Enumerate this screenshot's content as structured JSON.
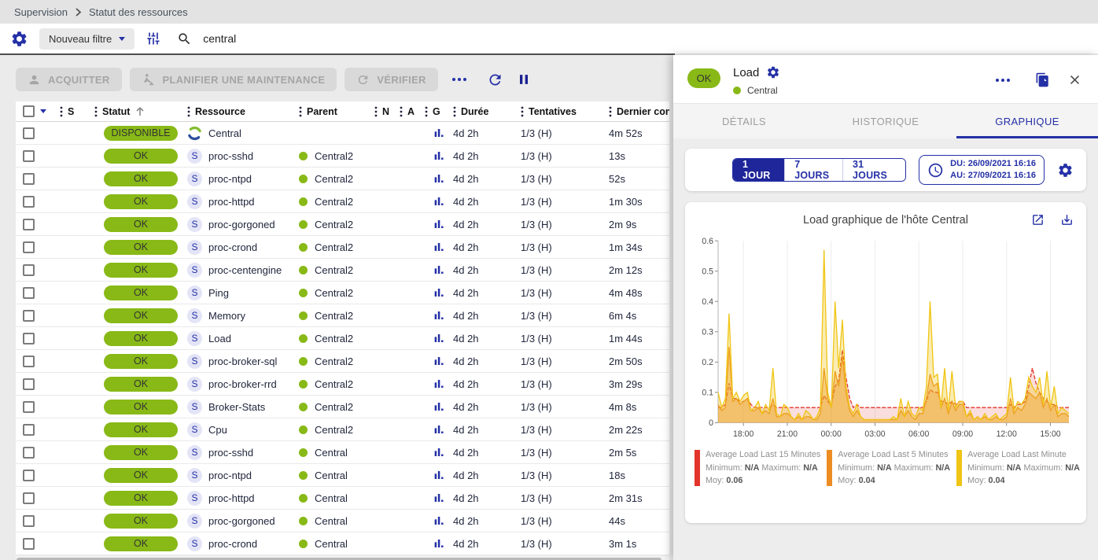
{
  "palette": {
    "primary": "#2430a6",
    "primary_dark": "#1f2699",
    "ok_green": "#88b917"
  },
  "breadcrumb": {
    "items": [
      "Supervision",
      "Statut des ressources"
    ]
  },
  "filter_bar": {
    "filter_label": "Nouveau filtre",
    "search_value": "central"
  },
  "actions": {
    "acknowledge": "ACQUITTER",
    "downtime": "PLANIFIER UNE MAINTENANCE",
    "check": "VÉRIFIER"
  },
  "table": {
    "status_ok_color": "#88b917",
    "columns": [
      {
        "label": ""
      },
      {
        "label": "S"
      },
      {
        "label": "Statut"
      },
      {
        "label": "Ressource"
      },
      {
        "label": "Parent"
      },
      {
        "label": "N"
      },
      {
        "label": "A"
      },
      {
        "label": "G"
      },
      {
        "label": "Durée"
      },
      {
        "label": "Tentatives"
      },
      {
        "label": "Dernier contrôle"
      }
    ],
    "rows": [
      {
        "status": "DISPONIBLE",
        "type": "host",
        "resource": "Central",
        "parent": "",
        "duration": "4d 2h",
        "tries": "1/3 (H)",
        "last_check": "4m 52s"
      },
      {
        "status": "OK",
        "type": "service",
        "resource": "proc-sshd",
        "parent": "Central2",
        "duration": "4d 2h",
        "tries": "1/3 (H)",
        "last_check": "13s"
      },
      {
        "status": "OK",
        "type": "service",
        "resource": "proc-ntpd",
        "parent": "Central2",
        "duration": "4d 2h",
        "tries": "1/3 (H)",
        "last_check": "52s"
      },
      {
        "status": "OK",
        "type": "service",
        "resource": "proc-httpd",
        "parent": "Central2",
        "duration": "4d 2h",
        "tries": "1/3 (H)",
        "last_check": "1m 30s"
      },
      {
        "status": "OK",
        "type": "service",
        "resource": "proc-gorgoned",
        "parent": "Central2",
        "duration": "4d 2h",
        "tries": "1/3 (H)",
        "last_check": "2m 9s"
      },
      {
        "status": "OK",
        "type": "service",
        "resource": "proc-crond",
        "parent": "Central2",
        "duration": "4d 2h",
        "tries": "1/3 (H)",
        "last_check": "1m 34s"
      },
      {
        "status": "OK",
        "type": "service",
        "resource": "proc-centengine",
        "parent": "Central2",
        "duration": "4d 2h",
        "tries": "1/3 (H)",
        "last_check": "2m 12s"
      },
      {
        "status": "OK",
        "type": "service",
        "resource": "Ping",
        "parent": "Central2",
        "duration": "4d 2h",
        "tries": "1/3 (H)",
        "last_check": "4m 48s"
      },
      {
        "status": "OK",
        "type": "service",
        "resource": "Memory",
        "parent": "Central2",
        "duration": "4d 2h",
        "tries": "1/3 (H)",
        "last_check": "6m 4s"
      },
      {
        "status": "OK",
        "type": "service",
        "resource": "Load",
        "parent": "Central2",
        "duration": "4d 2h",
        "tries": "1/3 (H)",
        "last_check": "1m 44s"
      },
      {
        "status": "OK",
        "type": "service",
        "resource": "proc-broker-sql",
        "parent": "Central2",
        "duration": "4d 2h",
        "tries": "1/3 (H)",
        "last_check": "2m 50s"
      },
      {
        "status": "OK",
        "type": "service",
        "resource": "proc-broker-rrd",
        "parent": "Central2",
        "duration": "4d 2h",
        "tries": "1/3 (H)",
        "last_check": "3m 29s"
      },
      {
        "status": "OK",
        "type": "service",
        "resource": "Broker-Stats",
        "parent": "Central2",
        "duration": "4d 2h",
        "tries": "1/3 (H)",
        "last_check": "4m 8s"
      },
      {
        "status": "OK",
        "type": "service",
        "resource": "Cpu",
        "parent": "Central2",
        "duration": "4d 2h",
        "tries": "1/3 (H)",
        "last_check": "2m 22s"
      },
      {
        "status": "OK",
        "type": "service",
        "resource": "proc-sshd",
        "parent": "Central",
        "duration": "4d 2h",
        "tries": "1/3 (H)",
        "last_check": "2m 5s"
      },
      {
        "status": "OK",
        "type": "service",
        "resource": "proc-ntpd",
        "parent": "Central",
        "duration": "4d 2h",
        "tries": "1/3 (H)",
        "last_check": "18s"
      },
      {
        "status": "OK",
        "type": "service",
        "resource": "proc-httpd",
        "parent": "Central",
        "duration": "4d 2h",
        "tries": "1/3 (H)",
        "last_check": "2m 31s"
      },
      {
        "status": "OK",
        "type": "service",
        "resource": "proc-gorgoned",
        "parent": "Central",
        "duration": "4d 2h",
        "tries": "1/3 (H)",
        "last_check": "44s"
      },
      {
        "status": "OK",
        "type": "service",
        "resource": "proc-crond",
        "parent": "Central",
        "duration": "4d 2h",
        "tries": "1/3 (H)",
        "last_check": "3m 1s"
      }
    ]
  },
  "drawer": {
    "status": "OK",
    "title": "Load",
    "parent": "Central",
    "tabs": [
      "DÉTAILS",
      "HISTORIQUE",
      "GRAPHIQUE"
    ],
    "active_tab": "GRAPHIQUE",
    "ranges": [
      "1 JOUR",
      "7 JOURS",
      "31 JOURS"
    ],
    "active_range": "1 JOUR",
    "period": {
      "from_label": "DU:",
      "from": "26/09/2021 16:16",
      "to_label": "AU:",
      "to": "27/09/2021 16:16"
    }
  },
  "chart_data": {
    "type": "area",
    "title": "Load graphique de l'hôte Central",
    "xlabel": "",
    "ylabel": "",
    "ylim": [
      0,
      0.6
    ],
    "y_ticks": [
      "0",
      "0.1",
      "0.2",
      "0.3",
      "0.4",
      "0.5",
      "0.6"
    ],
    "x_ticks": [
      "18:00",
      "21:00",
      "00:00",
      "03:00",
      "06:00",
      "09:00",
      "12:00",
      "15:00"
    ],
    "x_tick_hours": [
      1.733,
      4.733,
      7.733,
      10.733,
      13.733,
      16.733,
      19.733,
      22.733
    ],
    "span_hours": 24,
    "start": "26/09/2021 16:16",
    "end": "27/09/2021 16:16",
    "grid": "vertical-only",
    "legend_position": "bottom",
    "legend": {
      "min_label": "Minimum:",
      "max_label": "Maximum:",
      "avg_label": "Moy:"
    },
    "series": [
      {
        "name": "Average Load Last 15 Minutes",
        "color": "#e3342b",
        "fill": "rgba(227,52,43,0.16)",
        "dash": "5 2",
        "minimum": "N/A",
        "maximum": "N/A",
        "moy": "0.06",
        "values": [
          0.05,
          0.05,
          0.06,
          0.13,
          0.08,
          0.08,
          0.07,
          0.07,
          0.08,
          0.06,
          0.05,
          0.05,
          0.05,
          0.05,
          0.05,
          0.06,
          0.05,
          0.05,
          0.05,
          0.05,
          0.05,
          0.05,
          0.05,
          0.05,
          0.05,
          0.05,
          0.05,
          0.05,
          0.05,
          0.09,
          0.07,
          0.06,
          0.12,
          0.14,
          0.24,
          0.15,
          0.08,
          0.05,
          0.06,
          0.05,
          0.05,
          0.05,
          0.05,
          0.05,
          0.05,
          0.05,
          0.05,
          0.05,
          0.05,
          0.05,
          0.05,
          0.05,
          0.05,
          0.05,
          0.05,
          0.05,
          0.05,
          0.07,
          0.11,
          0.1,
          0.1,
          0.07,
          0.07,
          0.06,
          0.07,
          0.06,
          0.07,
          0.07,
          0.05,
          0.05,
          0.05,
          0.05,
          0.05,
          0.05,
          0.05,
          0.05,
          0.05,
          0.05,
          0.05,
          0.05,
          0.06,
          0.05,
          0.06,
          0.06,
          0.07,
          0.12,
          0.18,
          0.13,
          0.1,
          0.08,
          0.07,
          0.06,
          0.06,
          0.05,
          0.05,
          0.05,
          0.05
        ]
      },
      {
        "name": "Average Load Last 5 Minutes",
        "color": "#ec8c22",
        "fill": "rgba(236,140,34,0.38)",
        "dash": "",
        "minimum": "N/A",
        "maximum": "N/A",
        "moy": "0.04",
        "values": [
          0.06,
          0.04,
          0.05,
          0.25,
          0.07,
          0.08,
          0.06,
          0.07,
          0.08,
          0.04,
          0.04,
          0.05,
          0.03,
          0.04,
          0.03,
          0.08,
          0.02,
          0.02,
          0.03,
          0.03,
          0.02,
          0.01,
          0.02,
          0.01,
          0.02,
          0.02,
          0.01,
          0.01,
          0.03,
          0.18,
          0.08,
          0.05,
          0.17,
          0.12,
          0.22,
          0.1,
          0.04,
          0.02,
          0.04,
          0.02,
          0.01,
          0.01,
          0.01,
          0.01,
          0.01,
          0.01,
          0.01,
          0.01,
          0.01,
          0.01,
          0.04,
          0.02,
          0.04,
          0.02,
          0.01,
          0.03,
          0.03,
          0.08,
          0.16,
          0.12,
          0.13,
          0.05,
          0.08,
          0.03,
          0.07,
          0.04,
          0.06,
          0.06,
          0.02,
          0.03,
          0.01,
          0.02,
          0.01,
          0.02,
          0.01,
          0.01,
          0.02,
          0.01,
          0.01,
          0.02,
          0.08,
          0.03,
          0.05,
          0.04,
          0.06,
          0.1,
          0.09,
          0.08,
          0.1,
          0.05,
          0.08,
          0.04,
          0.06,
          0.02,
          0.03,
          0.03,
          0.02
        ]
      },
      {
        "name": "Average Load Last Minute",
        "color": "#f0c515",
        "fill": "rgba(240,197,21,0.33)",
        "dash": "",
        "minimum": "N/A",
        "maximum": "N/A",
        "moy": "0.04",
        "values": [
          0.1,
          0.05,
          0.08,
          0.36,
          0.08,
          0.1,
          0.07,
          0.09,
          0.1,
          0.04,
          0.05,
          0.07,
          0.03,
          0.06,
          0.04,
          0.18,
          0.03,
          0.02,
          0.06,
          0.05,
          0.02,
          0.01,
          0.03,
          0.01,
          0.04,
          0.03,
          0.01,
          0.02,
          0.05,
          0.57,
          0.1,
          0.05,
          0.4,
          0.18,
          0.34,
          0.12,
          0.05,
          0.03,
          0.06,
          0.02,
          0.01,
          0.01,
          0.01,
          0.01,
          0.01,
          0.01,
          0.01,
          0.01,
          0.02,
          0.01,
          0.08,
          0.02,
          0.07,
          0.03,
          0.02,
          0.05,
          0.04,
          0.12,
          0.4,
          0.15,
          0.16,
          0.05,
          0.18,
          0.04,
          0.17,
          0.05,
          0.07,
          0.07,
          0.02,
          0.04,
          0.01,
          0.02,
          0.01,
          0.03,
          0.01,
          0.02,
          0.03,
          0.01,
          0.02,
          0.03,
          0.15,
          0.04,
          0.07,
          0.06,
          0.08,
          0.15,
          0.12,
          0.1,
          0.15,
          0.06,
          0.17,
          0.05,
          0.12,
          0.03,
          0.05,
          0.04,
          0.03
        ]
      }
    ]
  }
}
